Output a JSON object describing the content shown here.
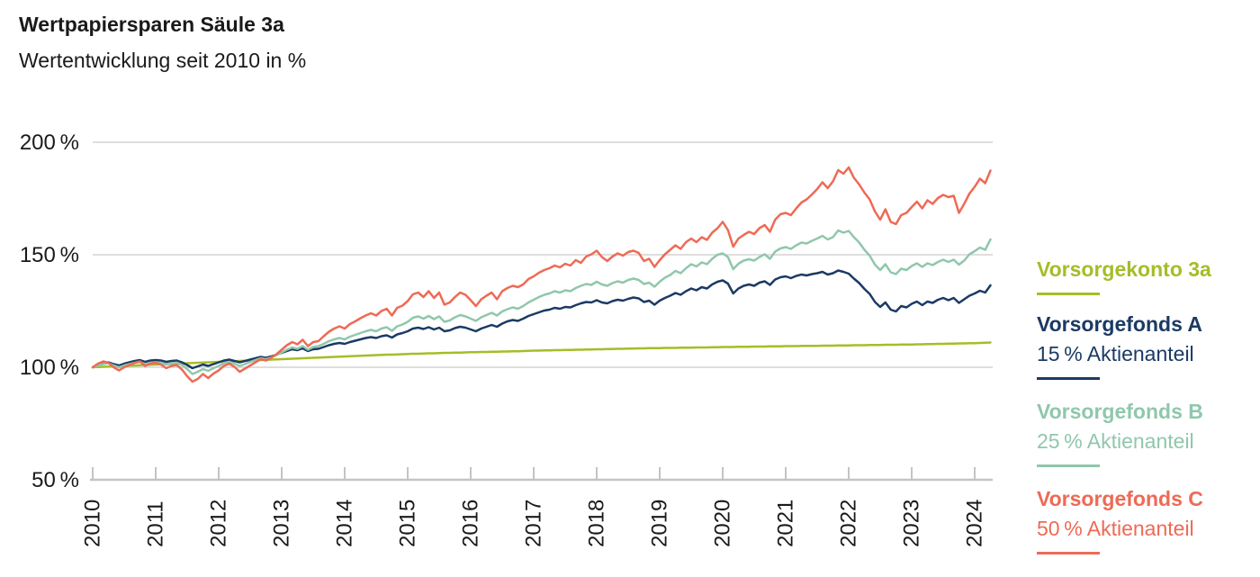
{
  "header": {
    "title": "Wertpapiersparen Säule 3a",
    "subtitle": "Wertentwicklung seit 2010 in %"
  },
  "chart_data": {
    "type": "line",
    "title": "Wertpapiersparen Säule 3a",
    "subtitle": "Wertentwicklung seit 2010 in %",
    "x_unit": "year",
    "x_start": 2010,
    "points_per_year": 12,
    "x_ticks": [
      "2010",
      "2011",
      "2012",
      "2013",
      "2014",
      "2015",
      "2016",
      "2017",
      "2018",
      "2019",
      "2020",
      "2021",
      "2022",
      "2023",
      "2024"
    ],
    "y_ticks": [
      {
        "label": "200 %",
        "value": 200
      },
      {
        "label": "150 %",
        "value": 150
      },
      {
        "label": "100 %",
        "value": 100
      },
      {
        "label": "50 %",
        "value": 50
      }
    ],
    "ylim": [
      50,
      200
    ],
    "xlim": [
      2010,
      2024.3
    ],
    "grid": "horizontal",
    "legend_position": "right",
    "grid_color": "#cbcbcb",
    "axis_color": "#c4c4c4",
    "text_color": "#1a1a1a",
    "series": [
      {
        "id": "vorsorgekonto-3a",
        "name": "Vorsorgekonto 3a",
        "subtitle": "",
        "color": "#a5bd27",
        "values": [
          100.0,
          100.1,
          100.2,
          100.3,
          100.4,
          100.5,
          100.6,
          100.7,
          100.8,
          100.9,
          101.0,
          101.1,
          101.2,
          101.3,
          101.4,
          101.5,
          101.6,
          101.7,
          101.8,
          101.9,
          102.0,
          102.1,
          102.2,
          102.3,
          102.4,
          102.5,
          102.6,
          102.7,
          102.8,
          102.9,
          103.0,
          103.1,
          103.2,
          103.3,
          103.4,
          103.5,
          103.6,
          103.7,
          103.8,
          103.9,
          104.0,
          104.1,
          104.2,
          104.3,
          104.4,
          104.5,
          104.6,
          104.7,
          104.8,
          104.9,
          105.0,
          105.1,
          105.2,
          105.3,
          105.4,
          105.5,
          105.6,
          105.6,
          105.7,
          105.8,
          105.9,
          106.0,
          106.0,
          106.1,
          106.2,
          106.2,
          106.3,
          106.4,
          106.4,
          106.5,
          106.5,
          106.6,
          106.7,
          106.7,
          106.8,
          106.8,
          106.9,
          106.9,
          107.0,
          107.0,
          107.1,
          107.1,
          107.2,
          107.3,
          107.4,
          107.4,
          107.5,
          107.5,
          107.6,
          107.6,
          107.7,
          107.7,
          107.8,
          107.8,
          107.9,
          107.9,
          108.0,
          108.0,
          108.1,
          108.1,
          108.2,
          108.2,
          108.3,
          108.3,
          108.4,
          108.4,
          108.5,
          108.5,
          108.5,
          108.6,
          108.6,
          108.6,
          108.7,
          108.7,
          108.7,
          108.8,
          108.8,
          108.8,
          108.9,
          108.9,
          109.0,
          109.0,
          109.0,
          109.1,
          109.1,
          109.1,
          109.2,
          109.2,
          109.2,
          109.3,
          109.3,
          109.3,
          109.4,
          109.4,
          109.4,
          109.5,
          109.5,
          109.5,
          109.5,
          109.6,
          109.6,
          109.6,
          109.7,
          109.7,
          109.7,
          109.8,
          109.8,
          109.8,
          109.9,
          109.9,
          109.9,
          110.0,
          110.0,
          110.0,
          110.1,
          110.1,
          110.1,
          110.2,
          110.2,
          110.3,
          110.3,
          110.4,
          110.4,
          110.5,
          110.5,
          110.6,
          110.6,
          110.7,
          110.7,
          110.8,
          110.9,
          111.0
        ]
      },
      {
        "id": "vorsorgefonds-a",
        "name": "Vorsorgefonds A",
        "subtitle": "15 % Aktienanteil",
        "color": "#1b3a64",
        "values": [
          100.0,
          101.0,
          101.8,
          102.2,
          101.4,
          100.8,
          101.6,
          102.2,
          102.8,
          103.2,
          102.4,
          103.0,
          103.2,
          103.0,
          102.4,
          102.8,
          103.0,
          102.2,
          101.0,
          99.6,
          100.4,
          101.2,
          100.6,
          101.4,
          102.2,
          103.0,
          103.4,
          102.8,
          102.2,
          102.8,
          103.4,
          104.0,
          104.6,
          104.2,
          104.8,
          105.6,
          106.4,
          107.2,
          108.0,
          107.6,
          108.4,
          107.2,
          108.0,
          108.2,
          109.0,
          109.8,
          110.4,
          110.8,
          110.4,
          111.2,
          111.8,
          112.4,
          113.0,
          113.4,
          113.0,
          113.8,
          114.2,
          113.2,
          114.6,
          115.2,
          116.0,
          117.2,
          117.6,
          117.0,
          117.8,
          116.8,
          117.6,
          116.0,
          116.4,
          117.4,
          118.0,
          117.6,
          116.8,
          116.0,
          117.2,
          118.0,
          118.8,
          118.0,
          119.4,
          120.4,
          121.0,
          120.6,
          121.6,
          122.8,
          123.6,
          124.4,
          125.2,
          125.6,
          126.4,
          126.0,
          126.8,
          126.6,
          127.6,
          128.4,
          129.0,
          128.8,
          129.8,
          128.8,
          128.4,
          129.4,
          130.0,
          129.6,
          130.4,
          131.0,
          130.6,
          129.0,
          129.6,
          127.8,
          129.6,
          130.8,
          131.8,
          133.0,
          132.2,
          133.8,
          135.0,
          134.2,
          135.6,
          135.0,
          136.8,
          138.0,
          138.6,
          137.2,
          132.8,
          135.0,
          136.2,
          136.8,
          136.2,
          137.6,
          138.2,
          136.6,
          139.0,
          140.0,
          140.4,
          139.6,
          140.6,
          141.2,
          140.8,
          141.4,
          141.8,
          142.4,
          141.2,
          141.8,
          143.0,
          142.4,
          141.6,
          139.4,
          137.4,
          134.8,
          132.6,
          129.0,
          126.8,
          128.8,
          125.6,
          124.8,
          127.2,
          126.6,
          128.2,
          129.2,
          127.6,
          129.2,
          128.6,
          130.0,
          130.8,
          129.8,
          130.8,
          128.6,
          130.2,
          131.8,
          132.8,
          134.0,
          133.2,
          136.4
        ]
      },
      {
        "id": "vorsorgefonds-b",
        "name": "Vorsorgefonds B",
        "subtitle": "25 % Aktienanteil",
        "color": "#90c7ac",
        "values": [
          100.0,
          100.8,
          101.4,
          101.8,
          100.8,
          100.0,
          100.8,
          101.4,
          102.0,
          102.4,
          101.4,
          102.0,
          102.2,
          102.0,
          101.2,
          101.8,
          102.0,
          101.0,
          99.2,
          97.0,
          98.0,
          99.2,
          98.4,
          99.6,
          100.6,
          101.8,
          102.4,
          101.6,
          100.6,
          101.4,
          102.4,
          103.2,
          104.0,
          103.6,
          104.4,
          105.4,
          106.6,
          107.8,
          108.8,
          108.2,
          109.4,
          107.8,
          109.0,
          109.4,
          110.4,
          111.6,
          112.4,
          113.0,
          112.4,
          113.6,
          114.4,
          115.2,
          116.0,
          116.6,
          116.0,
          117.2,
          117.8,
          116.2,
          118.2,
          119.0,
          120.2,
          122.0,
          122.6,
          121.6,
          122.8,
          121.4,
          122.6,
          120.2,
          120.8,
          122.2,
          123.2,
          122.6,
          121.6,
          120.6,
          122.2,
          123.2,
          124.2,
          123.0,
          124.8,
          125.8,
          126.6,
          126.0,
          127.2,
          128.8,
          130.0,
          131.2,
          132.2,
          132.8,
          133.8,
          133.2,
          134.2,
          133.8,
          135.2,
          136.2,
          137.0,
          136.6,
          138.0,
          136.8,
          136.2,
          137.4,
          138.2,
          137.6,
          138.8,
          139.4,
          138.8,
          137.0,
          137.6,
          135.8,
          138.0,
          139.8,
          141.0,
          142.8,
          141.8,
          144.0,
          145.8,
          144.8,
          146.6,
          145.8,
          148.2,
          150.0,
          150.6,
          149.0,
          143.6,
          146.0,
          147.4,
          148.0,
          147.4,
          149.0,
          150.2,
          148.2,
          151.4,
          152.8,
          153.4,
          152.6,
          154.2,
          155.4,
          155.0,
          156.2,
          157.2,
          158.4,
          156.8,
          157.8,
          160.8,
          159.8,
          160.6,
          157.8,
          155.4,
          152.2,
          149.6,
          145.6,
          143.2,
          145.8,
          142.2,
          141.4,
          143.8,
          143.2,
          145.0,
          146.2,
          144.6,
          146.2,
          145.4,
          146.8,
          147.8,
          146.8,
          147.8,
          145.6,
          147.4,
          150.2,
          151.6,
          153.2,
          152.2,
          156.8
        ]
      },
      {
        "id": "vorsorgefonds-c",
        "name": "Vorsorgefonds C",
        "subtitle": "50 % Aktienanteil",
        "color": "#ee6a55",
        "values": [
          100.0,
          101.6,
          102.6,
          102.0,
          100.0,
          98.6,
          100.0,
          101.0,
          102.0,
          102.6,
          100.6,
          101.6,
          102.0,
          101.2,
          99.6,
          100.6,
          101.0,
          99.0,
          96.0,
          93.6,
          94.8,
          97.0,
          95.2,
          97.2,
          98.6,
          100.6,
          101.6,
          100.2,
          98.0,
          99.4,
          100.8,
          102.2,
          103.6,
          103.0,
          104.2,
          105.8,
          107.8,
          109.8,
          111.2,
          110.2,
          112.2,
          109.4,
          111.2,
          111.6,
          113.8,
          115.8,
          117.2,
          118.2,
          117.2,
          119.2,
          120.4,
          121.8,
          123.0,
          124.0,
          123.0,
          125.0,
          126.0,
          123.0,
          126.4,
          127.4,
          129.4,
          132.4,
          133.2,
          131.2,
          133.8,
          130.8,
          133.2,
          127.8,
          128.8,
          131.2,
          133.2,
          132.2,
          129.8,
          127.2,
          130.2,
          131.8,
          133.2,
          130.2,
          133.8,
          135.2,
          136.2,
          135.6,
          136.8,
          139.2,
          140.4,
          142.0,
          143.2,
          144.0,
          145.2,
          144.4,
          146.0,
          145.2,
          147.6,
          146.4,
          149.2,
          150.2,
          151.8,
          149.0,
          147.2,
          149.2,
          150.6,
          149.6,
          151.2,
          151.8,
          150.8,
          147.2,
          148.2,
          144.6,
          147.6,
          150.2,
          152.2,
          154.2,
          152.6,
          155.6,
          157.2,
          155.6,
          157.8,
          156.6,
          159.8,
          161.8,
          164.6,
          161.0,
          153.6,
          157.2,
          158.8,
          160.2,
          159.2,
          161.8,
          163.2,
          160.2,
          165.6,
          168.0,
          168.6,
          167.6,
          170.6,
          173.2,
          174.6,
          176.8,
          179.2,
          182.2,
          179.6,
          182.6,
          187.6,
          186.0,
          188.8,
          184.2,
          181.2,
          177.6,
          174.6,
          169.2,
          165.6,
          170.2,
          164.6,
          163.6,
          167.6,
          168.6,
          171.2,
          173.6,
          170.6,
          174.2,
          172.6,
          175.2,
          176.6,
          175.6,
          176.2,
          168.6,
          172.6,
          177.2,
          180.2,
          183.8,
          181.8,
          187.4
        ]
      }
    ]
  }
}
